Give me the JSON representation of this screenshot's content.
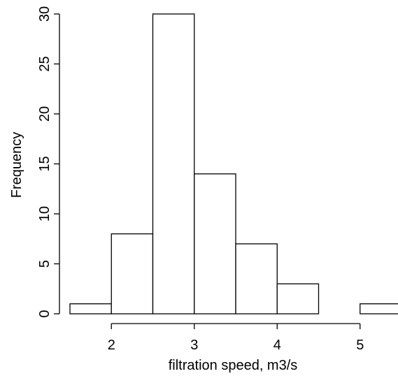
{
  "chart_data": {
    "type": "histogram",
    "title": "",
    "xlabel": "filtration speed, m3/s",
    "ylabel": "Frequency",
    "bins": [
      {
        "start": 1.5,
        "end": 2.0,
        "count": 1
      },
      {
        "start": 2.0,
        "end": 2.5,
        "count": 8
      },
      {
        "start": 2.5,
        "end": 3.0,
        "count": 30
      },
      {
        "start": 3.0,
        "end": 3.5,
        "count": 14
      },
      {
        "start": 3.5,
        "end": 4.0,
        "count": 7
      },
      {
        "start": 4.0,
        "end": 4.5,
        "count": 3
      },
      {
        "start": 4.5,
        "end": 5.0,
        "count": 0
      },
      {
        "start": 5.0,
        "end": 5.5,
        "count": 1
      }
    ],
    "x_ticks": [
      {
        "value": 2,
        "label": "2"
      },
      {
        "value": 3,
        "label": "3"
      },
      {
        "value": 4,
        "label": "4"
      },
      {
        "value": 5,
        "label": "5"
      }
    ],
    "y_ticks": [
      {
        "value": 0,
        "label": "0"
      },
      {
        "value": 5,
        "label": "5"
      },
      {
        "value": 10,
        "label": "10"
      },
      {
        "value": 15,
        "label": "15"
      },
      {
        "value": 20,
        "label": "20"
      },
      {
        "value": 25,
        "label": "25"
      },
      {
        "value": 30,
        "label": "30"
      }
    ],
    "xlim": [
      1.5,
      5.5
    ],
    "ylim": [
      0,
      30
    ],
    "grid": false,
    "bar_fill": "#ffffff",
    "bar_stroke": "#000000"
  }
}
